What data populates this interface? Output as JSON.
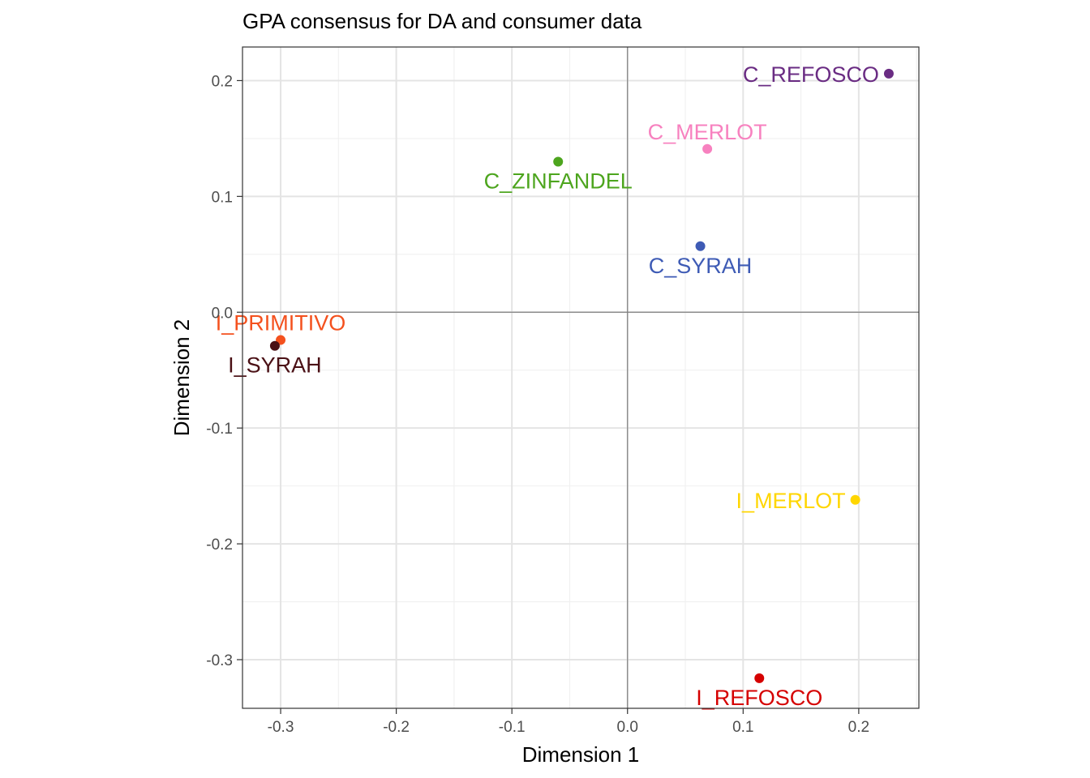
{
  "chart_data": {
    "type": "scatter",
    "title": "GPA consensus for DA and consumer data",
    "xlabel": "Dimension 1",
    "ylabel": "Dimension 2",
    "xlim": [
      -0.333,
      0.252
    ],
    "ylim": [
      -0.342,
      0.229
    ],
    "xticks": [
      -0.3,
      -0.2,
      -0.1,
      0.0,
      0.1,
      0.2
    ],
    "xtick_labels": [
      "-0.3",
      "-0.2",
      "-0.1",
      "0.0",
      "0.1",
      "0.2"
    ],
    "yticks": [
      -0.3,
      -0.2,
      -0.1,
      0.0,
      0.1,
      0.2
    ],
    "ytick_labels": [
      "-0.3",
      "-0.2",
      "-0.1",
      "0.0",
      "0.1",
      "0.2"
    ],
    "grid": true,
    "reference_lines": {
      "x": 0,
      "y": 0
    },
    "points": [
      {
        "label": "C_REFOSCO",
        "x": 0.226,
        "y": 0.206,
        "color": "#6A2C83",
        "label_pos": "left"
      },
      {
        "label": "C_MERLOT",
        "x": 0.069,
        "y": 0.141,
        "color": "#F781BF",
        "label_pos": "above"
      },
      {
        "label": "C_ZINFANDEL",
        "x": -0.06,
        "y": 0.13,
        "color": "#4DA51E",
        "label_pos": "below"
      },
      {
        "label": "C_SYRAH",
        "x": 0.063,
        "y": 0.057,
        "color": "#3E5BB5",
        "label_pos": "below"
      },
      {
        "label": "I_PRIMITIVO",
        "x": -0.3,
        "y": -0.024,
        "color": "#F4511E",
        "label_pos": "above"
      },
      {
        "label": "I_SYRAH",
        "x": -0.305,
        "y": -0.029,
        "color": "#4A1015",
        "label_pos": "below"
      },
      {
        "label": "I_MERLOT",
        "x": 0.197,
        "y": -0.162,
        "color": "#FFD600",
        "label_pos": "left"
      },
      {
        "label": "I_REFOSCO",
        "x": 0.114,
        "y": -0.316,
        "color": "#D50000",
        "label_pos": "below"
      }
    ]
  }
}
